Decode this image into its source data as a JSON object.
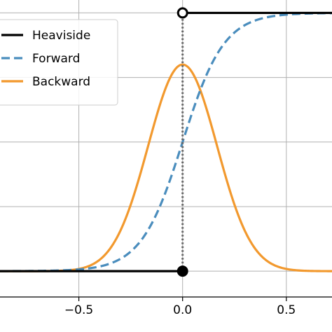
{
  "chart_data": {
    "type": "line",
    "title": "",
    "xlabel": "",
    "ylabel": "",
    "xlim": [
      -0.88,
      0.72
    ],
    "ylim": [
      -0.1,
      1.05
    ],
    "grid": true,
    "legend_position": "upper-left",
    "x_ticks": [
      {
        "value": -0.5,
        "label": "−0.5"
      },
      {
        "value": 0.0,
        "label": "0.0"
      },
      {
        "value": 0.5,
        "label": "0.5"
      }
    ],
    "y_gridlines": [
      0.0,
      0.25,
      0.5,
      0.75,
      1.0
    ],
    "series": [
      {
        "name": "Heaviside",
        "color": "#000000",
        "style": "solid",
        "segments": [
          [
            [
              -0.88,
              0.0
            ],
            [
              0.0,
              0.0
            ]
          ],
          [
            [
              0.0,
              1.0
            ],
            [
              0.72,
              1.0
            ]
          ]
        ],
        "markers": [
          {
            "x": 0.0,
            "y": 0.0,
            "fill": "#000000"
          },
          {
            "x": 0.0,
            "y": 1.0,
            "fill": "#ffffff"
          }
        ]
      },
      {
        "name": "Forward",
        "color": "#4a8dbd",
        "style": "dashed",
        "function": "sigmoid",
        "steepness": 10
      },
      {
        "name": "Backward",
        "color": "#f2992e",
        "style": "solid",
        "function": "gaussian",
        "peak": 0.8,
        "sigma": 0.166
      }
    ],
    "annotations": [
      {
        "type": "vertical-dotted-line",
        "x": 0.0,
        "y_from": 0.0,
        "y_to": 1.0,
        "color": "#666666"
      }
    ]
  }
}
